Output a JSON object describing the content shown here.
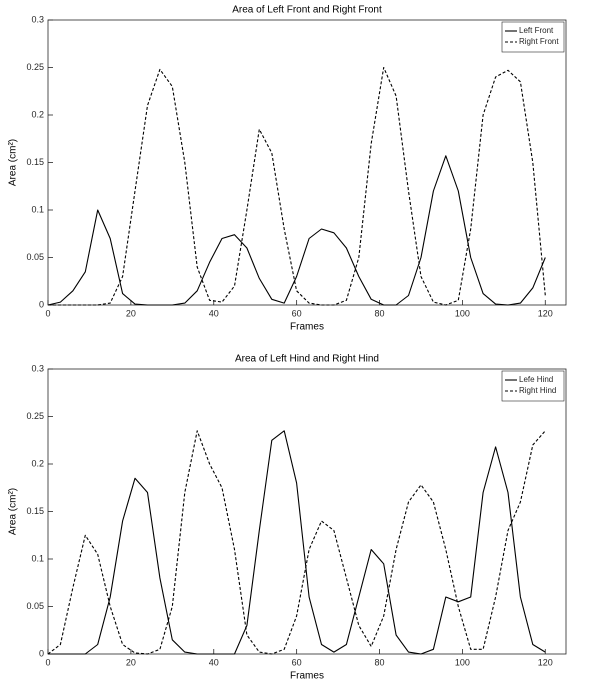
{
  "chart_data": [
    {
      "type": "line",
      "title": "Area of Left Front and Right Front",
      "xlabel": "Frames",
      "ylabel": "Area (cm²)",
      "x": [
        0,
        3,
        6,
        9,
        12,
        15,
        18,
        21,
        24,
        27,
        30,
        33,
        36,
        39,
        42,
        45,
        48,
        51,
        54,
        57,
        60,
        63,
        66,
        69,
        72,
        75,
        78,
        81,
        84,
        87,
        90,
        93,
        96,
        99,
        102,
        105,
        108,
        111,
        114,
        117,
        120
      ],
      "series": [
        {
          "name": "Left Front",
          "color": "#000000",
          "style": "solid",
          "values": [
            0,
            0.003,
            0.015,
            0.035,
            0.1,
            0.07,
            0.012,
            0.001,
            0,
            0,
            0,
            0.002,
            0.015,
            0.045,
            0.07,
            0.074,
            0.06,
            0.028,
            0.006,
            0.002,
            0.03,
            0.07,
            0.08,
            0.076,
            0.06,
            0.03,
            0.006,
            0,
            0,
            0.01,
            0.05,
            0.12,
            0.157,
            0.12,
            0.05,
            0.012,
            0.001,
            0,
            0.002,
            0.018,
            0.05
          ]
        },
        {
          "name": "Right Front",
          "color": "#000000",
          "style": "dashed",
          "values": [
            0,
            0,
            0,
            0,
            0,
            0.002,
            0.03,
            0.12,
            0.21,
            0.248,
            0.23,
            0.15,
            0.04,
            0.005,
            0.003,
            0.02,
            0.1,
            0.185,
            0.16,
            0.08,
            0.015,
            0.002,
            0,
            0,
            0.005,
            0.05,
            0.17,
            0.25,
            0.22,
            0.12,
            0.03,
            0.003,
            0,
            0.005,
            0.08,
            0.2,
            0.24,
            0.247,
            0.235,
            0.15,
            0.01
          ]
        }
      ],
      "xlim": [
        0,
        125
      ],
      "xticks": [
        0,
        20,
        40,
        60,
        80,
        100,
        120
      ],
      "ylim": [
        0,
        0.3
      ],
      "yticks": [
        0,
        0.05,
        0.1,
        0.15,
        0.2,
        0.25,
        0.3
      ],
      "legend": "upper right"
    },
    {
      "type": "line",
      "title": "Area of Left Hind and Right Hind",
      "xlabel": "Frames",
      "ylabel": "Area (cm²)",
      "x": [
        0,
        3,
        6,
        9,
        12,
        15,
        18,
        21,
        24,
        27,
        30,
        33,
        36,
        39,
        42,
        45,
        48,
        51,
        54,
        57,
        60,
        63,
        66,
        69,
        72,
        75,
        78,
        81,
        84,
        87,
        90,
        93,
        96,
        99,
        102,
        105,
        108,
        111,
        114,
        117,
        120
      ],
      "series": [
        {
          "name": "Lefe Hind",
          "color": "#000000",
          "style": "solid",
          "values": [
            0,
            0,
            0,
            0,
            0.01,
            0.06,
            0.14,
            0.185,
            0.17,
            0.08,
            0.015,
            0.002,
            0,
            0,
            0,
            0,
            0.03,
            0.13,
            0.225,
            0.235,
            0.18,
            0.06,
            0.01,
            0.002,
            0.01,
            0.06,
            0.11,
            0.095,
            0.02,
            0.002,
            0,
            0.005,
            0.06,
            0.055,
            0.06,
            0.17,
            0.218,
            0.17,
            0.06,
            0.01,
            0.002
          ]
        },
        {
          "name": "Right Hind",
          "color": "#000000",
          "style": "dashed",
          "values": [
            0,
            0.01,
            0.07,
            0.125,
            0.105,
            0.05,
            0.01,
            0.001,
            0,
            0.005,
            0.05,
            0.17,
            0.235,
            0.2,
            0.175,
            0.11,
            0.02,
            0.002,
            0,
            0.005,
            0.04,
            0.11,
            0.14,
            0.13,
            0.08,
            0.03,
            0.008,
            0.04,
            0.11,
            0.16,
            0.178,
            0.16,
            0.11,
            0.05,
            0.005,
            0.005,
            0.06,
            0.13,
            0.16,
            0.22,
            0.235
          ]
        }
      ],
      "xlim": [
        0,
        125
      ],
      "xticks": [
        0,
        20,
        40,
        60,
        80,
        100,
        120
      ],
      "ylim": [
        0,
        0.3
      ],
      "yticks": [
        0,
        0.05,
        0.1,
        0.15,
        0.2,
        0.25,
        0.3
      ],
      "legend": "upper right"
    }
  ]
}
